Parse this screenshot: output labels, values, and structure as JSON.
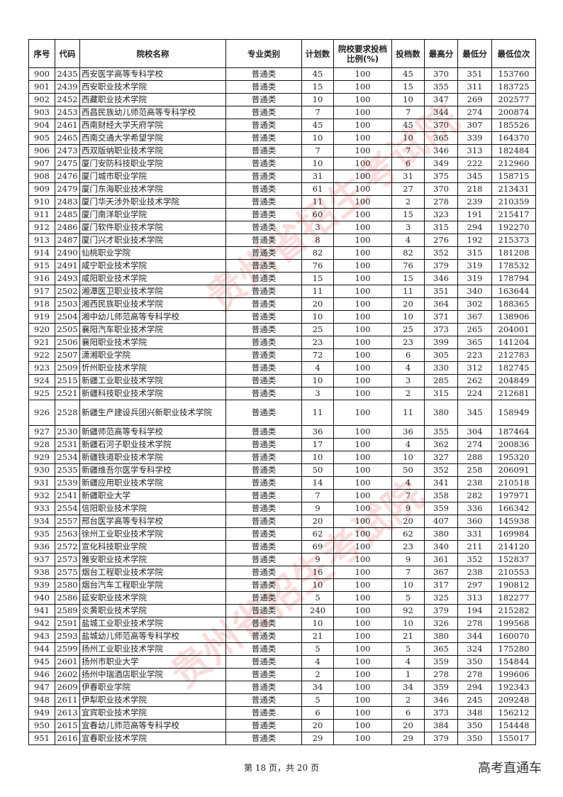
{
  "table": {
    "headers": [
      "序号",
      "代码",
      "院校名称",
      "专业类别",
      "计划数",
      "院校要求投档比例(%)",
      "投档数",
      "最高分",
      "最低分",
      "最低位次"
    ],
    "rows": [
      [
        "900",
        "2435",
        "西安医学高等专科学校",
        "普通类",
        "45",
        "100",
        "45",
        "370",
        "351",
        "153760"
      ],
      [
        "901",
        "2439",
        "西安职业技术学院",
        "普通类",
        "15",
        "100",
        "15",
        "355",
        "311",
        "183725"
      ],
      [
        "902",
        "2452",
        "西藏职业技术学院",
        "普通类",
        "10",
        "100",
        "10",
        "347",
        "269",
        "202577"
      ],
      [
        "903",
        "2453",
        "西昌民族幼儿师范高等专科学校",
        "普通类",
        "7",
        "100",
        "7",
        "344",
        "274",
        "200874"
      ],
      [
        "904",
        "2461",
        "西南财经大学天府学院",
        "普通类",
        "45",
        "100",
        "45",
        "370",
        "307",
        "185526"
      ],
      [
        "905",
        "2465",
        "西南交通大学希望学院",
        "普通类",
        "10",
        "100",
        "10",
        "365",
        "339",
        "164370"
      ],
      [
        "906",
        "2473",
        "西双版纳职业技术学院",
        "普通类",
        "7",
        "100",
        "7",
        "346",
        "313",
        "182484"
      ],
      [
        "907",
        "2475",
        "厦门安防科技职业学院",
        "普通类",
        "10",
        "100",
        "6",
        "349",
        "222",
        "212960"
      ],
      [
        "908",
        "2476",
        "厦门城市职业学院",
        "普通类",
        "31",
        "100",
        "31",
        "375",
        "345",
        "158715"
      ],
      [
        "909",
        "2479",
        "厦门东海职业技术学院",
        "普通类",
        "61",
        "100",
        "27",
        "370",
        "218",
        "213431"
      ],
      [
        "910",
        "2483",
        "厦门华天涉外职业技术学院",
        "普通类",
        "11",
        "100",
        "2",
        "278",
        "239",
        "210359"
      ],
      [
        "911",
        "2485",
        "厦门南洋职业学院",
        "普通类",
        "60",
        "100",
        "15",
        "323",
        "191",
        "215417"
      ],
      [
        "912",
        "2486",
        "厦门软件职业技术学院",
        "普通类",
        "3",
        "100",
        "3",
        "315",
        "294",
        "192270"
      ],
      [
        "913",
        "2487",
        "厦门兴才职业技术学院",
        "普通类",
        "8",
        "100",
        "4",
        "276",
        "192",
        "215373"
      ],
      [
        "914",
        "2490",
        "仙桃职业学院",
        "普通类",
        "82",
        "100",
        "82",
        "352",
        "315",
        "181208"
      ],
      [
        "915",
        "2491",
        "咸宁职业技术学院",
        "普通类",
        "76",
        "100",
        "76",
        "379",
        "319",
        "178532"
      ],
      [
        "916",
        "2493",
        "咸阳职业技术学院",
        "普通类",
        "15",
        "100",
        "15",
        "346",
        "319",
        "178794"
      ],
      [
        "917",
        "2502",
        "湘潭医卫职业技术学院",
        "普通类",
        "11",
        "100",
        "11",
        "351",
        "340",
        "163644"
      ],
      [
        "918",
        "2503",
        "湘西民族职业技术学院",
        "普通类",
        "20",
        "100",
        "20",
        "364",
        "302",
        "188365"
      ],
      [
        "919",
        "2504",
        "湘中幼儿师范高等专科学校",
        "普通类",
        "10",
        "100",
        "10",
        "371",
        "367",
        "138906"
      ],
      [
        "920",
        "2505",
        "襄阳汽车职业技术学院",
        "普通类",
        "25",
        "100",
        "25",
        "373",
        "265",
        "204001"
      ],
      [
        "921",
        "2506",
        "襄阳职业技术学院",
        "普通类",
        "23",
        "100",
        "23",
        "399",
        "365",
        "141204"
      ],
      [
        "922",
        "2507",
        "潇湘职业学院",
        "普通类",
        "72",
        "100",
        "6",
        "305",
        "223",
        "212783"
      ],
      [
        "923",
        "2509",
        "忻州职业技术学院",
        "普通类",
        "4",
        "100",
        "4",
        "330",
        "312",
        "182745"
      ],
      [
        "924",
        "2515",
        "新疆工业职业技术学院",
        "普通类",
        "10",
        "100",
        "3",
        "285",
        "262",
        "204849"
      ],
      [
        "925",
        "2521",
        "新疆科技职业技术学院",
        "普通类",
        "3",
        "100",
        "2",
        "315",
        "224",
        "212681"
      ],
      [
        "926",
        "2528",
        "新疆生产建设兵团兴新职业技术学院",
        "普通类",
        "11",
        "100",
        "11",
        "380",
        "345",
        "158949"
      ],
      [
        "927",
        "2530",
        "新疆师范高等专科学校",
        "普通类",
        "36",
        "100",
        "36",
        "355",
        "304",
        "187464"
      ],
      [
        "928",
        "2531",
        "新疆石河子职业技术学院",
        "普通类",
        "17",
        "100",
        "4",
        "362",
        "274",
        "200836"
      ],
      [
        "929",
        "2534",
        "新疆铁道职业技术学院",
        "普通类",
        "10",
        "100",
        "10",
        "327",
        "288",
        "195320"
      ],
      [
        "930",
        "2535",
        "新疆维吾尔医学专科学校",
        "普通类",
        "50",
        "100",
        "50",
        "352",
        "258",
        "206091"
      ],
      [
        "931",
        "2539",
        "新疆应用职业技术学院",
        "普通类",
        "14",
        "100",
        "4",
        "341",
        "238",
        "210518"
      ],
      [
        "932",
        "2541",
        "新疆职业大学",
        "普通类",
        "7",
        "100",
        "7",
        "358",
        "282",
        "197971"
      ],
      [
        "933",
        "2554",
        "信阳职业技术学院",
        "普通类",
        "9",
        "100",
        "9",
        "359",
        "336",
        "166342"
      ],
      [
        "934",
        "2557",
        "邢台医学高等专科学校",
        "普通类",
        "20",
        "100",
        "20",
        "407",
        "360",
        "145938"
      ],
      [
        "935",
        "2563",
        "徐州工业职业技术学院",
        "普通类",
        "62",
        "100",
        "62",
        "380",
        "331",
        "169984"
      ],
      [
        "936",
        "2572",
        "宣化科技职业学院",
        "普通类",
        "69",
        "100",
        "23",
        "340",
        "211",
        "214120"
      ],
      [
        "937",
        "2573",
        "雅安职业技术学院",
        "普通类",
        "9",
        "100",
        "9",
        "361",
        "352",
        "152837"
      ],
      [
        "938",
        "2575",
        "烟台工程职业技术学院",
        "普通类",
        "16",
        "100",
        "7",
        "367",
        "238",
        "210553"
      ],
      [
        "939",
        "2580",
        "烟台汽车工程职业学院",
        "普通类",
        "10",
        "100",
        "10",
        "317",
        "297",
        "190812"
      ],
      [
        "940",
        "2586",
        "延安职业技术学院",
        "普通类",
        "5",
        "100",
        "5",
        "325",
        "313",
        "182277"
      ],
      [
        "941",
        "2589",
        "炎黄职业技术学院",
        "普通类",
        "240",
        "100",
        "92",
        "379",
        "194",
        "215282"
      ],
      [
        "942",
        "2591",
        "盐城工业职业技术学院",
        "普通类",
        "10",
        "100",
        "10",
        "326",
        "278",
        "199568"
      ],
      [
        "943",
        "2593",
        "盐城幼儿师范高等专科学校",
        "普通类",
        "21",
        "100",
        "21",
        "380",
        "344",
        "160070"
      ],
      [
        "944",
        "2599",
        "扬州工业职业技术学院",
        "普通类",
        "5",
        "100",
        "5",
        "365",
        "324",
        "175280"
      ],
      [
        "945",
        "2601",
        "扬州市职业大学",
        "普通类",
        "4",
        "100",
        "4",
        "359",
        "350",
        "154844"
      ],
      [
        "946",
        "2602",
        "扬州中瑞酒店职业学院",
        "普通类",
        "2",
        "100",
        "1",
        "278",
        "278",
        "199606"
      ],
      [
        "947",
        "2609",
        "伊春职业学院",
        "普通类",
        "34",
        "100",
        "34",
        "359",
        "294",
        "192343"
      ],
      [
        "948",
        "2611",
        "伊犁职业技术学院",
        "普通类",
        "5",
        "100",
        "2",
        "346",
        "245",
        "209248"
      ],
      [
        "949",
        "2613",
        "宜宾职业技术学院",
        "普通类",
        "6",
        "100",
        "6",
        "373",
        "348",
        "156212"
      ],
      [
        "950",
        "2615",
        "宜春幼儿师范高等专科学校",
        "普通类",
        "20",
        "100",
        "20",
        "384",
        "350",
        "154448"
      ],
      [
        "951",
        "2616",
        "宜春职业技术学院",
        "普通类",
        "29",
        "100",
        "29",
        "379",
        "350",
        "155017"
      ]
    ]
  },
  "watermark": "贵州省招生考试院",
  "footer": {
    "page_info": "第 18 页，共 20 页",
    "brand": "高考直通车"
  }
}
